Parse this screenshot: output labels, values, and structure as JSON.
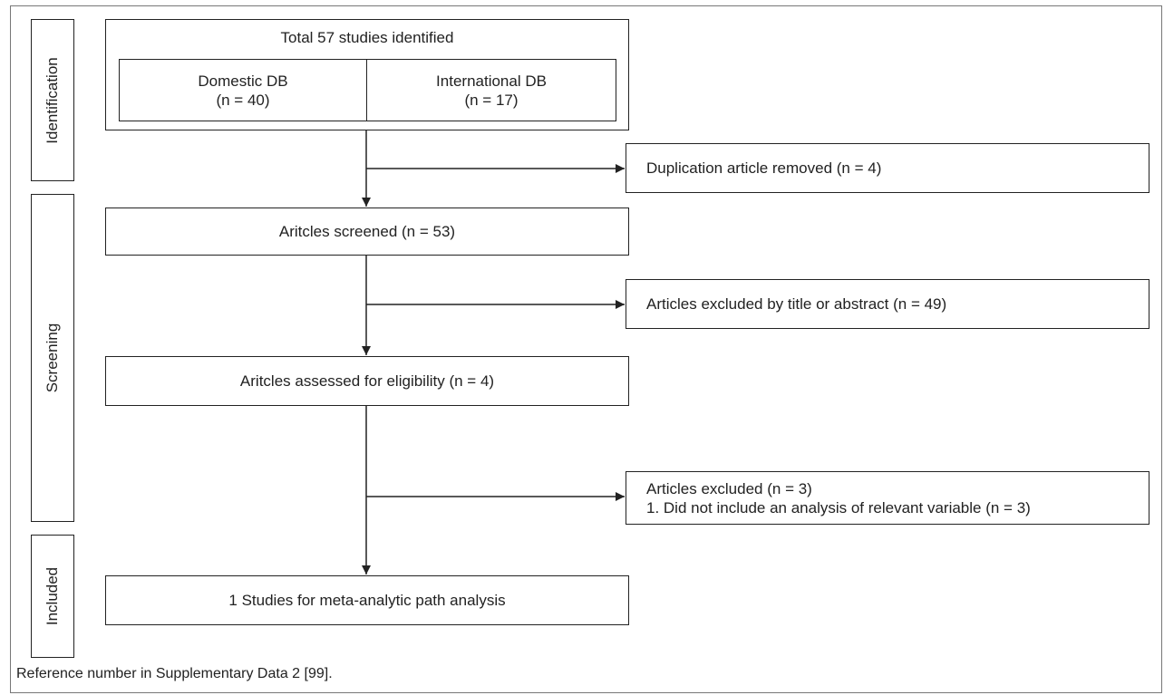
{
  "stages": {
    "identification": "Identification",
    "screening": "Screening",
    "included": "Included"
  },
  "identified": {
    "title": "Total 57 studies identified",
    "domestic_label": "Domestic DB",
    "domestic_count": "(n = 40)",
    "international_label": "International DB",
    "international_count": "(n = 17)"
  },
  "removed": {
    "duplicates": "Duplication article removed (n = 4)"
  },
  "screened": {
    "label": "Aritcles screened (n = 53)"
  },
  "excluded_title_abstract": {
    "label": "Articles excluded by title or abstract (n = 49)"
  },
  "eligibility": {
    "label": "Aritcles assessed for eligibility (n = 4)"
  },
  "excluded_full": {
    "line1": "Articles excluded (n = 3)",
    "line2": "1. Did not include an analysis of relevant variable (n = 3)"
  },
  "included": {
    "label": "1 Studies for meta-analytic path analysis"
  },
  "footer": {
    "note": "Reference number in Supplementary Data 2 [99]."
  }
}
